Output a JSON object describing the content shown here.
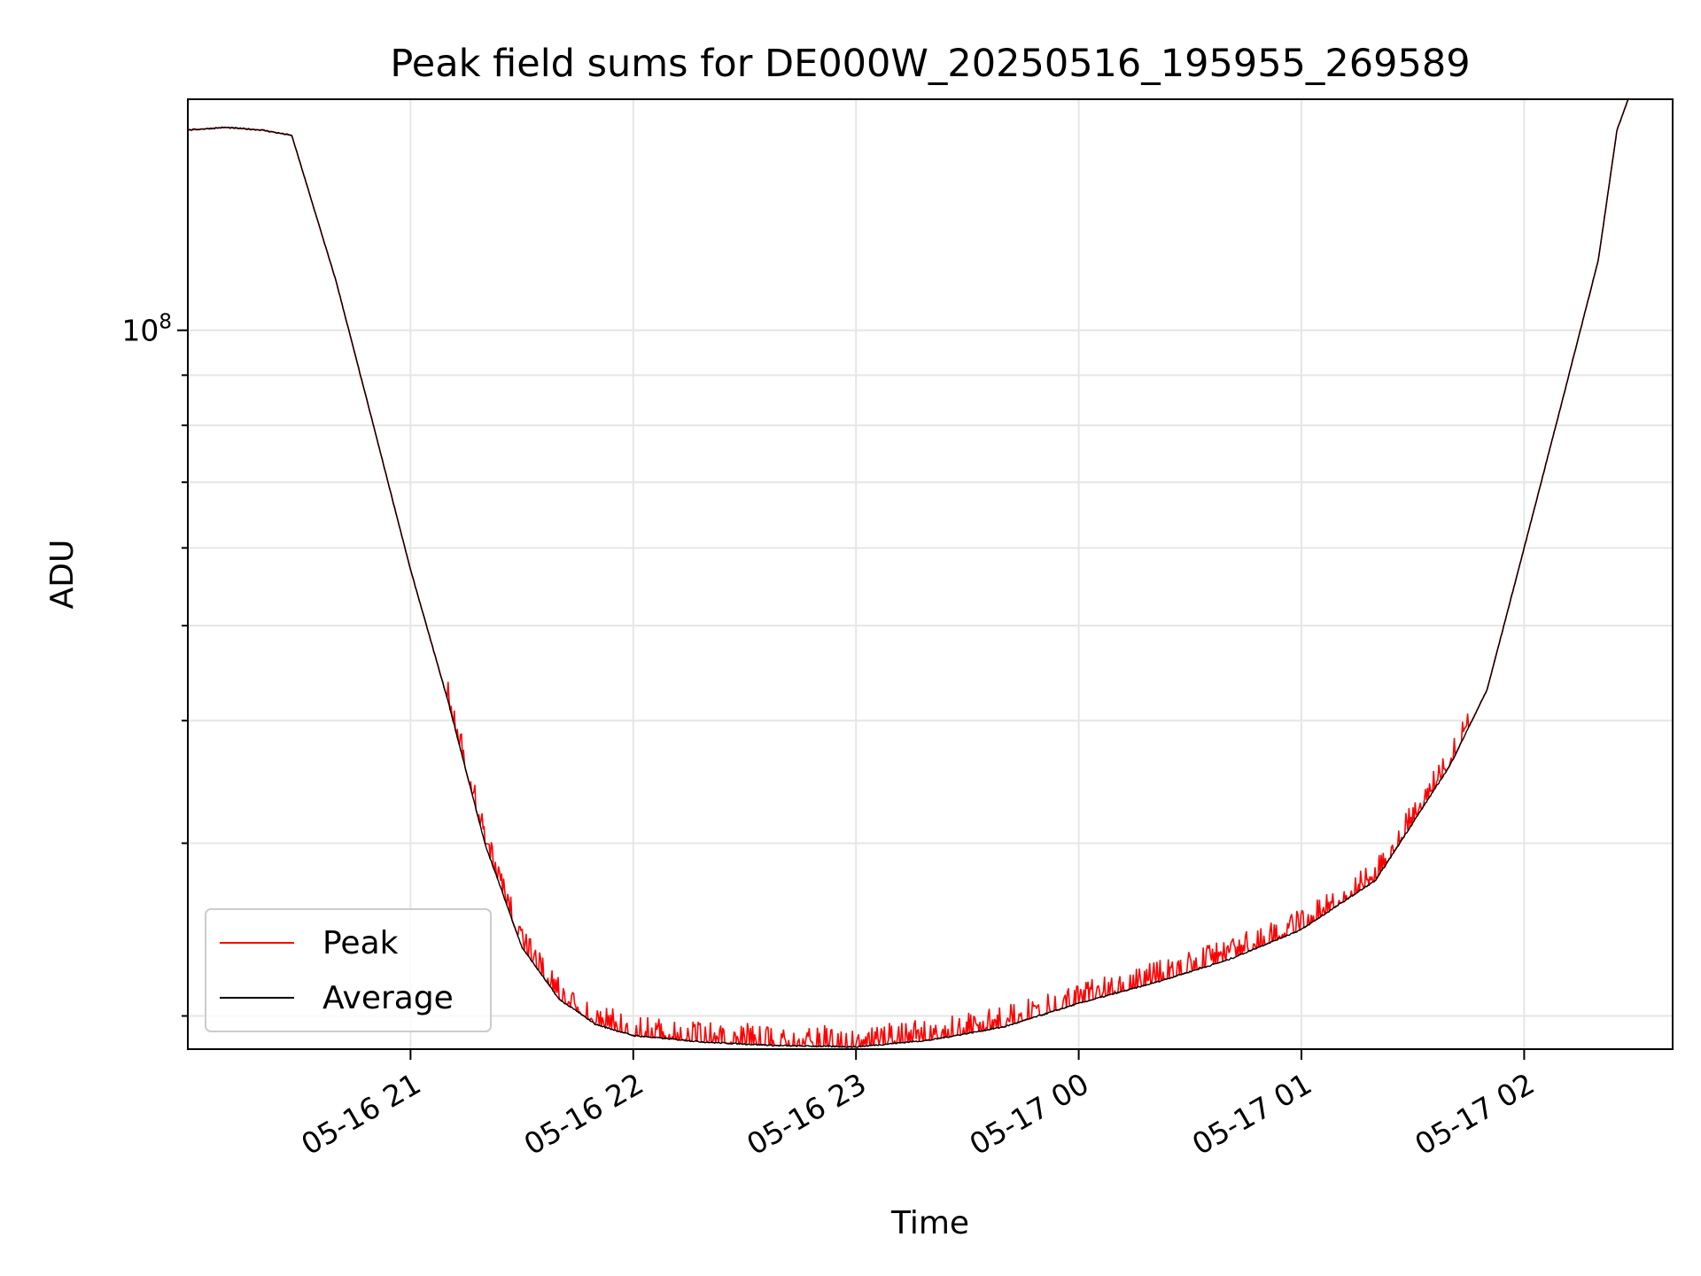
{
  "chart_data": {
    "type": "line",
    "title": "Peak field sums for DE000W_20250516_195955_269589",
    "xlabel": "Time",
    "ylabel": "ADU",
    "yscale": "log",
    "xlim": [
      "2025-05-16T20:00",
      "2025-05-17T02:40"
    ],
    "ylim": [
      18500000,
      172000000
    ],
    "x_ticks": [
      {
        "t": "2025-05-16T21:00",
        "label": "05-16 21"
      },
      {
        "t": "2025-05-16T22:00",
        "label": "05-16 22"
      },
      {
        "t": "2025-05-16T23:00",
        "label": "05-16 23"
      },
      {
        "t": "2025-05-17T00:00",
        "label": "05-17 00"
      },
      {
        "t": "2025-05-17T01:00",
        "label": "05-17 01"
      },
      {
        "t": "2025-05-17T02:00",
        "label": "05-17 02"
      }
    ],
    "y_major_ticks": [
      {
        "value": 100000000,
        "base": "10",
        "exp": "8"
      }
    ],
    "y_minor_ticks": [
      20000000,
      30000000,
      40000000,
      50000000,
      60000000,
      70000000,
      80000000,
      90000000,
      200000000
    ],
    "grid": true,
    "legend": {
      "position": "lower-left"
    },
    "series": [
      {
        "name": "Peak",
        "color": "#ff0000",
        "noisy": true,
        "x": [
          "2025-05-16T20:00",
          "2025-05-16T20:10",
          "2025-05-16T20:20",
          "2025-05-16T20:28",
          "2025-05-16T20:40",
          "2025-05-16T20:50",
          "2025-05-16T21:00",
          "2025-05-16T21:10",
          "2025-05-16T21:20",
          "2025-05-16T21:30",
          "2025-05-16T21:40",
          "2025-05-16T21:50",
          "2025-05-16T22:00",
          "2025-05-16T22:20",
          "2025-05-16T22:40",
          "2025-05-16T23:00",
          "2025-05-16T23:20",
          "2025-05-16T23:40",
          "2025-05-17T00:00",
          "2025-05-17T00:20",
          "2025-05-17T00:40",
          "2025-05-17T01:00",
          "2025-05-17T01:20",
          "2025-05-17T01:40",
          "2025-05-17T01:50",
          "2025-05-17T02:00",
          "2025-05-17T02:10",
          "2025-05-17T02:20",
          "2025-05-17T02:25",
          "2025-05-17T02:28"
        ],
        "y": [
          160000000,
          161000000,
          160000000,
          158000000,
          112000000,
          80000000,
          57000000,
          42000000,
          30000000,
          23500000,
          20800000,
          19600000,
          19100000,
          18800000,
          18650000,
          18600000,
          18900000,
          19500000,
          20600000,
          21600000,
          22800000,
          24500000,
          27500000,
          36000000,
          43000000,
          60000000,
          84000000,
          118000000,
          160000000,
          172000000
        ]
      },
      {
        "name": "Average",
        "color": "#000000",
        "noisy": false,
        "x": [
          "2025-05-16T20:00",
          "2025-05-16T20:10",
          "2025-05-16T20:20",
          "2025-05-16T20:28",
          "2025-05-16T20:40",
          "2025-05-16T20:50",
          "2025-05-16T21:00",
          "2025-05-16T21:10",
          "2025-05-16T21:20",
          "2025-05-16T21:30",
          "2025-05-16T21:40",
          "2025-05-16T21:50",
          "2025-05-16T22:00",
          "2025-05-16T22:20",
          "2025-05-16T22:40",
          "2025-05-16T23:00",
          "2025-05-16T23:20",
          "2025-05-16T23:40",
          "2025-05-17T00:00",
          "2025-05-17T00:20",
          "2025-05-17T00:40",
          "2025-05-17T01:00",
          "2025-05-17T01:20",
          "2025-05-17T01:40",
          "2025-05-17T01:50",
          "2025-05-17T02:00",
          "2025-05-17T02:10",
          "2025-05-17T02:20",
          "2025-05-17T02:25",
          "2025-05-17T02:28"
        ],
        "y": [
          160000000,
          161000000,
          160000000,
          158000000,
          112000000,
          80000000,
          57000000,
          42000000,
          30000000,
          23500000,
          20800000,
          19600000,
          19100000,
          18800000,
          18650000,
          18600000,
          18900000,
          19500000,
          20600000,
          21600000,
          22800000,
          24500000,
          27500000,
          36000000,
          43000000,
          60000000,
          84000000,
          118000000,
          160000000,
          172000000
        ]
      }
    ]
  }
}
